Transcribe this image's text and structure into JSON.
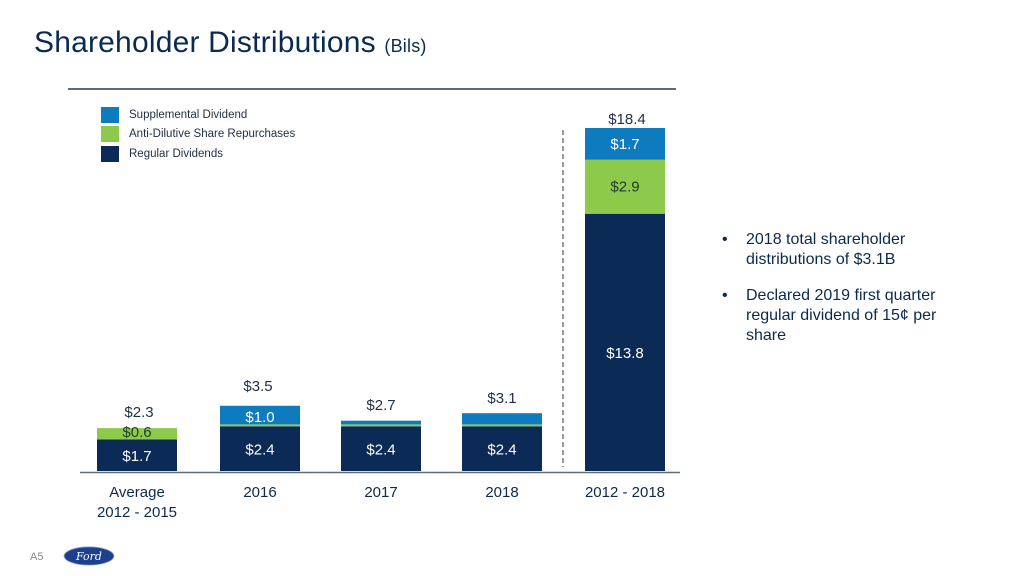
{
  "slide": {
    "title": "Shareholder Distributions",
    "title_unit": "(Bils)",
    "page_label": "A5",
    "logo_text": "Ford",
    "bullets": [
      "2018 total shareholder distributions of $3.1B",
      "Declared 2019 first quarter regular dividend of 15¢ per share"
    ]
  },
  "colors": {
    "supplemental": "#0e7bbf",
    "repurchases": "#8dc94a",
    "regular": "#0b2a55",
    "text_dark": "#0b2a4f"
  },
  "chart_data": {
    "type": "bar",
    "stacked": true,
    "title": "Shareholder Distributions (Bils)",
    "xlabel": "",
    "ylabel": "",
    "ylim": [
      0,
      18.4
    ],
    "grid": false,
    "legend_position": "top-left",
    "categories": [
      "Average 2012 - 2015",
      "2016",
      "2017",
      "2018",
      "2012 - 2018"
    ],
    "category_lines": [
      [
        "Average",
        "2012 - 2015"
      ],
      [
        "2016"
      ],
      [
        "2017"
      ],
      [
        "2018"
      ],
      [
        "2012 - 2018"
      ]
    ],
    "series": [
      {
        "name": "Regular Dividends",
        "color": "#0b2a55",
        "values": [
          1.7,
          2.4,
          2.4,
          2.4,
          13.8
        ],
        "labels": [
          "$1.7",
          "$2.4",
          "$2.4",
          "$2.4",
          "$13.8"
        ]
      },
      {
        "name": "Anti-Dilutive Share Repurchases",
        "color": "#8dc94a",
        "values": [
          0.6,
          0.1,
          0.1,
          0.1,
          2.9
        ],
        "labels": [
          "$0.6",
          "",
          "",
          "",
          "$2.9"
        ]
      },
      {
        "name": "Supplemental Dividend",
        "color": "#0e7bbf",
        "values": [
          0.0,
          1.0,
          0.2,
          0.6,
          1.7
        ],
        "labels": [
          "",
          "$1.0",
          "",
          "",
          "$1.7"
        ]
      }
    ],
    "totals": [
      2.3,
      3.5,
      2.7,
      3.1,
      18.4
    ],
    "total_labels": [
      "$2.3",
      "$3.5",
      "$2.7",
      "$3.1",
      "$18.4"
    ],
    "legend": [
      "Supplemental Dividend",
      "Anti-Dilutive Share Repurchases",
      "Regular Dividends"
    ],
    "annotations": [
      "dashed separator between 2018 and 2012 - 2018"
    ]
  }
}
